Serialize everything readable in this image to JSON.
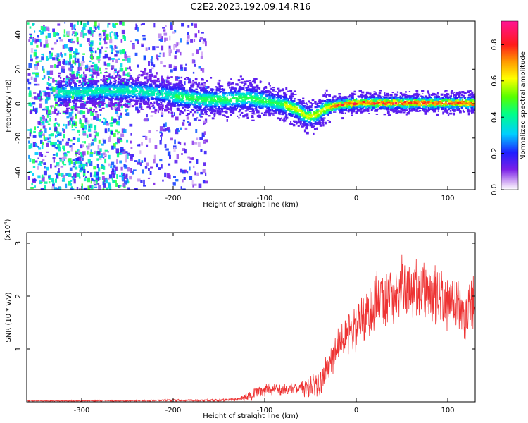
{
  "title": "C2E2.2023.192.09.14.R16",
  "chart_data": [
    {
      "type": "heatmap",
      "xlabel": "Height of straight line (km)",
      "ylabel": "Frequency (Hz)",
      "xlim": [
        -360,
        130
      ],
      "ylim": [
        -50,
        48
      ],
      "xticks": [
        -300,
        -200,
        -100,
        0,
        100
      ],
      "yticks": [
        -40,
        -20,
        0,
        20,
        40
      ],
      "ridge": {
        "x": [
          -310,
          -280,
          -250,
          -220,
          -200,
          -170,
          -140,
          -120,
          -100,
          -80,
          -65,
          -55,
          -45,
          -35,
          -20,
          0,
          50,
          100,
          130
        ],
        "y": [
          7,
          8,
          8,
          7,
          5,
          3,
          3,
          4,
          2,
          0,
          -3,
          -7,
          -6,
          -2,
          0,
          1,
          1,
          1,
          1
        ]
      },
      "colorbar": {
        "label": "Normalized spectral amplitude",
        "ticks": [
          0.0,
          0.2,
          0.4,
          0.6,
          0.8
        ],
        "range": [
          0,
          0.93
        ]
      }
    },
    {
      "type": "line",
      "xlabel": "Height of straight line (km)",
      "ylabel": "SNR (10 * v/v)",
      "y_multiplier": "(x10",
      "y_multiplier_exp": "4",
      "xlim": [
        -360,
        130
      ],
      "ylim": [
        0,
        3.2
      ],
      "xticks": [
        -300,
        -200,
        -100,
        0,
        100
      ],
      "yticks": [
        1,
        2,
        3
      ],
      "color": "#ee3333",
      "envelope": {
        "x": [
          -360,
          -250,
          -200,
          -150,
          -130,
          -110,
          -100,
          -80,
          -60,
          -40,
          -30,
          -20,
          -10,
          0,
          10,
          20,
          30,
          50,
          70,
          90,
          110,
          120,
          130
        ],
        "mean": [
          0.02,
          0.02,
          0.03,
          0.03,
          0.05,
          0.15,
          0.25,
          0.22,
          0.25,
          0.35,
          0.7,
          1.1,
          1.25,
          1.4,
          1.65,
          1.85,
          2.0,
          2.1,
          2.1,
          2.0,
          1.8,
          1.7,
          1.9
        ],
        "spread": [
          0.01,
          0.01,
          0.02,
          0.02,
          0.04,
          0.1,
          0.12,
          0.1,
          0.12,
          0.25,
          0.3,
          0.3,
          0.35,
          0.4,
          0.45,
          0.5,
          0.5,
          0.55,
          0.55,
          0.5,
          0.45,
          0.45,
          0.5
        ]
      }
    }
  ]
}
